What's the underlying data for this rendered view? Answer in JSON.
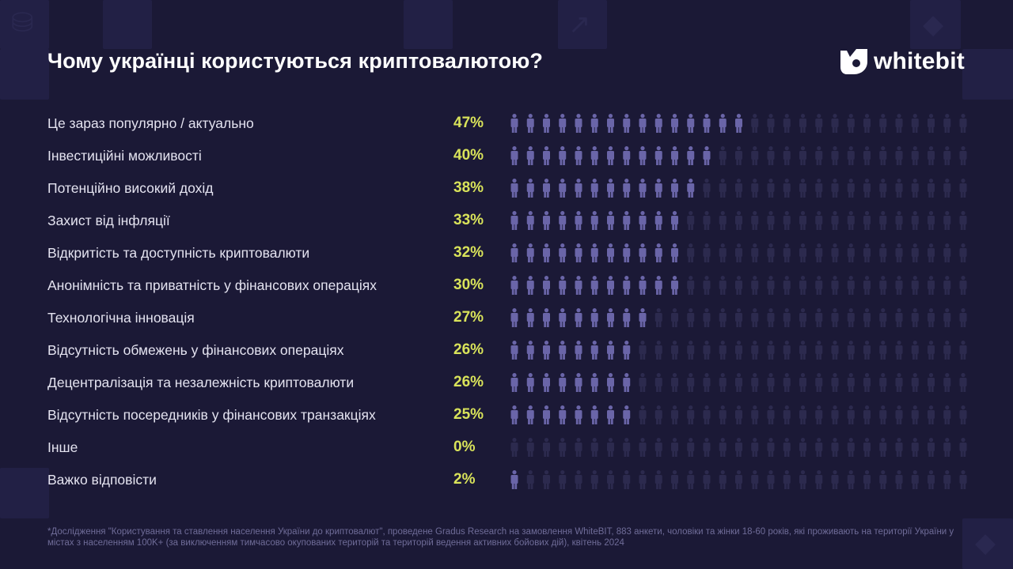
{
  "title": "Чому українці користуються криптовалютою?",
  "logo_text": "whitebit",
  "colors": {
    "background": "#1b1936",
    "person_filled": "#6a65a8",
    "person_empty": "#2c2a4e",
    "percent": "#d9e35a",
    "text": "#e4e3f0"
  },
  "chart_data": {
    "type": "bar",
    "display": "pictograph",
    "icons_per_row": 29,
    "unit": "%",
    "categories": [
      "Це зараз популярно / актуально",
      "Інвестиційні можливості",
      "Потенційно високий дохід",
      "Захист від інфляції",
      "Відкритість та доступність криптовалюти",
      "Анонімність та приватність у фінансових операціях",
      "Технологічна інновація",
      "Відсутність обмежень у фінансових операціях",
      "Децентралізація та незалежність криптовалюти",
      "Відсутність посередників у фінансових транзакціях",
      "Інше",
      "Важко відповісти"
    ],
    "values": [
      47,
      40,
      38,
      33,
      32,
      30,
      27,
      26,
      26,
      25,
      0,
      2
    ],
    "labels": [
      "47%",
      "40%",
      "38%",
      "33%",
      "32%",
      "30%",
      "27%",
      "26%",
      "26%",
      "25%",
      "0%",
      "2%"
    ],
    "filled_icons": [
      15,
      13,
      12,
      11,
      11,
      11,
      9,
      8,
      8,
      8,
      0,
      1
    ]
  },
  "footnote": "*Дослідження \"Користування та ставлення населення України до криптовалют\", проведене Gradus Research на замовлення WhiteBIT, 883 анкети, чоловіки та жінки 18-60 років, які проживають на території України у містах з населенням 100K+ (за виключенням тимчасово окупованих територій та територій ведення активних бойових дій), квітень 2024"
}
